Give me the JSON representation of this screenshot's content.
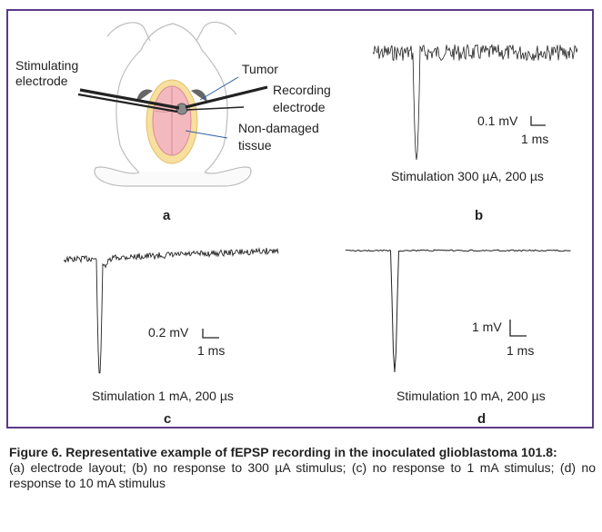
{
  "panel_a": {
    "letter": "a",
    "stimulating_label_line1": "Stimulating",
    "stimulating_label_line2": "electrode",
    "tumor_label": "Tumor",
    "recording_label_line1": "Recording",
    "recording_label_line2": "electrode",
    "nondamaged_label_line1": "Non-damaged",
    "nondamaged_label_line2": "tissue"
  },
  "panel_b": {
    "letter": "b",
    "scale_v": "0.1 mV",
    "scale_t": "1 ms",
    "stimulation": "Stimulation 300 µA, 200 µs"
  },
  "panel_c": {
    "letter": "c",
    "scale_v": "0.2 mV",
    "scale_t": "1 ms",
    "stimulation": "Stimulation 1 mA, 200 µs"
  },
  "panel_d": {
    "letter": "d",
    "scale_v": "1 mV",
    "scale_t": "1 ms",
    "stimulation": "Stimulation 10 mA, 200 µs"
  },
  "caption": {
    "title": "Figure 6. Representative example of fEPSP recording in the inoculated glioblastoma 101.8:",
    "body": "(a) electrode layout; (b) no response to 300 µA stimulus; (c) no response to 1 mA stimulus; (d) no response to 10 mA stimulus"
  },
  "colors": {
    "frame": "#5b3a86",
    "tumor_fill": "#f7df9e",
    "brain_fill": "#f3b9bf",
    "pointer_line": "#2f5fa8"
  }
}
